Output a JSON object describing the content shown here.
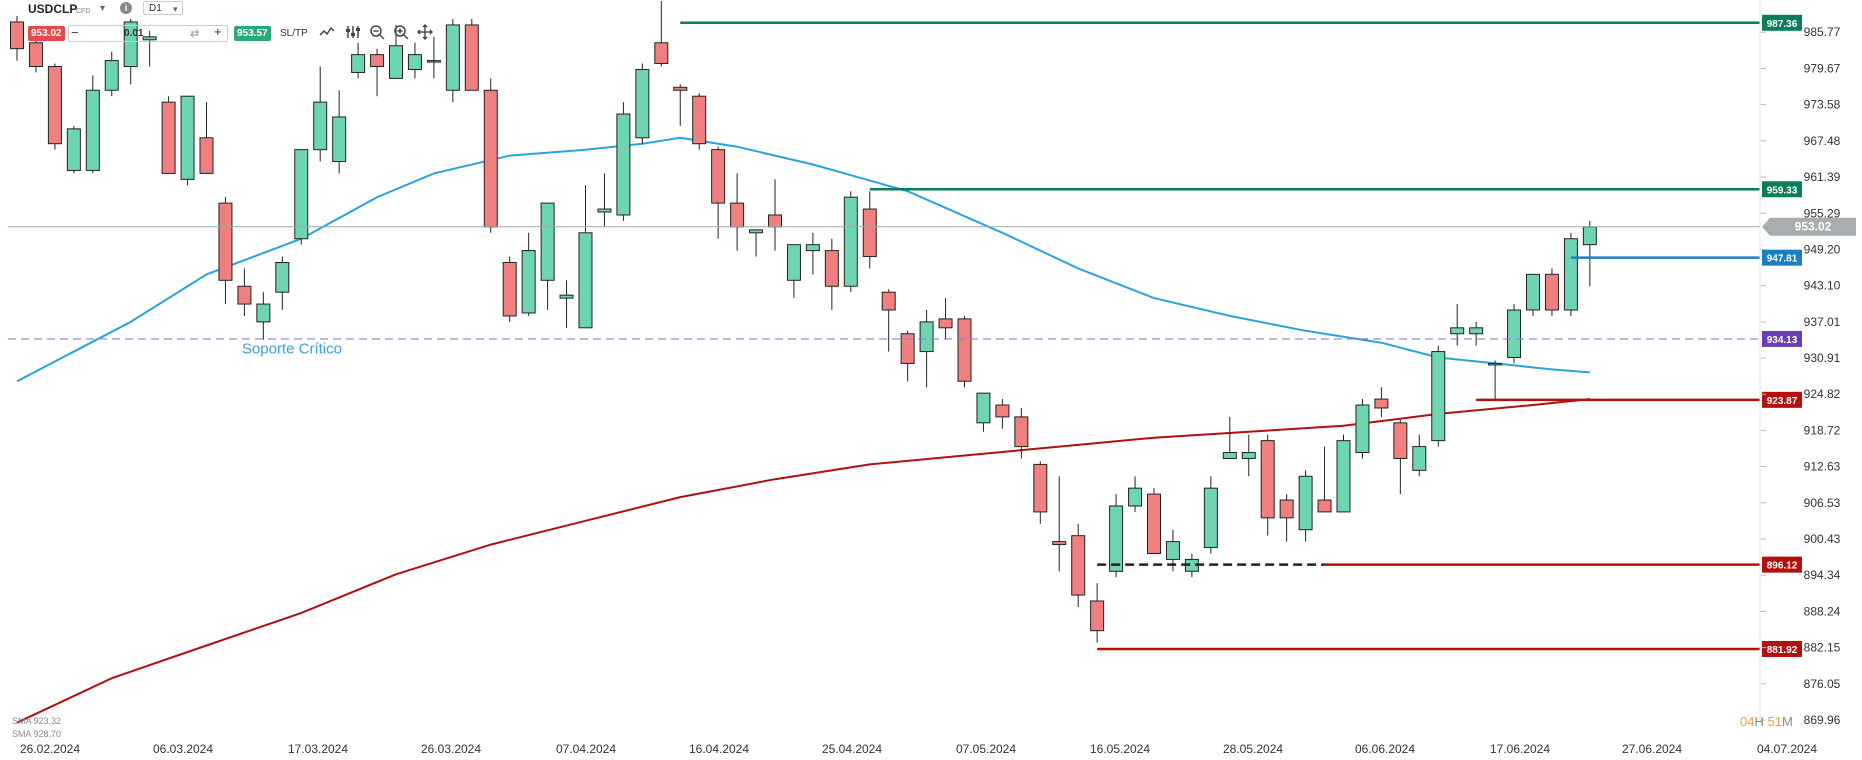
{
  "toolbar": {
    "symbol": "USDCLP",
    "instrument_type": "CFD",
    "timeframe": "D1",
    "bid": "953.02",
    "volume": "0.01",
    "ask": "953.57",
    "sltp_label": "SL/TP",
    "caret": "▾",
    "info": "i",
    "minus": "−",
    "plus": "+",
    "swap": "⇄"
  },
  "legend": {
    "sma1": "SMA 923.32",
    "sma2": "SMA 928.70"
  },
  "timer": {
    "hours": "04",
    "hours_unit": "H",
    "minutes": "51",
    "minutes_unit": "M"
  },
  "colors": {
    "bull": "#6fd4b0",
    "bear": "#f08080",
    "sma_fast": "#29a3e0",
    "sma_slow": "#b30f0f",
    "level_green": "#0a7d5a",
    "level_red": "#b30f0f",
    "level_blue": "#1a7fc4",
    "level_purple": "#6a3fb3"
  },
  "chart_data": {
    "type": "candlestick",
    "ylim": [
      869.96,
      991.2
    ],
    "y_ticks": [
      "985.77",
      "979.67",
      "973.58",
      "967.48",
      "961.39",
      "955.29",
      "949.20",
      "943.10",
      "937.01",
      "930.91",
      "924.82",
      "918.72",
      "912.63",
      "906.53",
      "900.43",
      "894.34",
      "888.24",
      "882.15",
      "876.05",
      "869.96"
    ],
    "x_ticks": [
      "26.02.2024",
      "06.03.2024",
      "17.03.2024",
      "26.03.2024",
      "07.04.2024",
      "16.04.2024",
      "25.04.2024",
      "07.05.2024",
      "16.05.2024",
      "28.05.2024",
      "06.06.2024",
      "17.06.2024",
      "27.06.2024",
      "04.07.2024"
    ],
    "candles": [
      {
        "o": 987.5,
        "h": 988.5,
        "l": 981.0,
        "c": 983.0
      },
      {
        "o": 984.0,
        "h": 984.5,
        "l": 979.0,
        "c": 980.0
      },
      {
        "o": 980.0,
        "h": 980.5,
        "l": 966.0,
        "c": 967.0
      },
      {
        "o": 962.5,
        "h": 970.0,
        "l": 962.0,
        "c": 969.5
      },
      {
        "o": 962.5,
        "h": 978.5,
        "l": 962.0,
        "c": 976.0
      },
      {
        "o": 976.0,
        "h": 982.5,
        "l": 975.0,
        "c": 981.0
      },
      {
        "o": 980.0,
        "h": 988.0,
        "l": 977.0,
        "c": 987.5
      },
      {
        "o": 984.5,
        "h": 986.0,
        "l": 980.0,
        "c": 985.0
      },
      {
        "o": 974.0,
        "h": 975.0,
        "l": 962.0,
        "c": 962.0
      },
      {
        "o": 961.0,
        "h": 975.0,
        "l": 960.0,
        "c": 975.0
      },
      {
        "o": 968.0,
        "h": 974.0,
        "l": 962.0,
        "c": 962.0
      },
      {
        "o": 957.0,
        "h": 958.0,
        "l": 940.0,
        "c": 944.0
      },
      {
        "o": 943.0,
        "h": 946.0,
        "l": 938.0,
        "c": 940.0
      },
      {
        "o": 937.0,
        "h": 942.0,
        "l": 934.0,
        "c": 940.0
      },
      {
        "o": 942.0,
        "h": 948.0,
        "l": 939.0,
        "c": 947.0
      },
      {
        "o": 951.0,
        "h": 966.0,
        "l": 950.0,
        "c": 966.0
      },
      {
        "o": 966.0,
        "h": 980.0,
        "l": 964.0,
        "c": 974.0
      },
      {
        "o": 964.0,
        "h": 976.0,
        "l": 962.0,
        "c": 971.5
      },
      {
        "o": 979.0,
        "h": 984.0,
        "l": 978.0,
        "c": 982.0
      },
      {
        "o": 982.0,
        "h": 983.0,
        "l": 975.0,
        "c": 980.0
      },
      {
        "o": 978.0,
        "h": 987.0,
        "l": 978.0,
        "c": 983.5
      },
      {
        "o": 979.5,
        "h": 984.0,
        "l": 978.0,
        "c": 982.0
      },
      {
        "o": 981.0,
        "h": 985.0,
        "l": 978.0,
        "c": 981.0
      },
      {
        "o": 976.0,
        "h": 988.0,
        "l": 974.0,
        "c": 987.0
      },
      {
        "o": 987.0,
        "h": 988.0,
        "l": 976.0,
        "c": 976.0
      },
      {
        "o": 976.0,
        "h": 978.0,
        "l": 952.0,
        "c": 953.0
      },
      {
        "o": 947.0,
        "h": 948.0,
        "l": 937.0,
        "c": 938.0
      },
      {
        "o": 938.5,
        "h": 952.0,
        "l": 938.0,
        "c": 949.0
      },
      {
        "o": 944.0,
        "h": 957.0,
        "l": 939.0,
        "c": 957.0
      },
      {
        "o": 941.0,
        "h": 944.0,
        "l": 936.0,
        "c": 941.5
      },
      {
        "o": 936.0,
        "h": 960.0,
        "l": 936.0,
        "c": 952.0
      },
      {
        "o": 955.5,
        "h": 962.0,
        "l": 953.0,
        "c": 956.0
      },
      {
        "o": 955.0,
        "h": 974.0,
        "l": 954.0,
        "c": 972.0
      },
      {
        "o": 968.0,
        "h": 980.5,
        "l": 967.0,
        "c": 979.5
      },
      {
        "o": 984.0,
        "h": 991.0,
        "l": 980.0,
        "c": 980.5
      },
      {
        "o": 976.5,
        "h": 977.0,
        "l": 970.0,
        "c": 976.0
      },
      {
        "o": 975.0,
        "h": 975.5,
        "l": 966.0,
        "c": 967.0
      },
      {
        "o": 966.0,
        "h": 966.5,
        "l": 951.0,
        "c": 957.0
      },
      {
        "o": 957.0,
        "h": 962.0,
        "l": 949.0,
        "c": 953.0
      },
      {
        "o": 952.0,
        "h": 952.5,
        "l": 948.0,
        "c": 952.5
      },
      {
        "o": 955.0,
        "h": 961.0,
        "l": 949.0,
        "c": 953.0
      },
      {
        "o": 944.0,
        "h": 950.0,
        "l": 941.0,
        "c": 950.0
      },
      {
        "o": 949.0,
        "h": 952.0,
        "l": 945.0,
        "c": 950.0
      },
      {
        "o": 949.0,
        "h": 951.0,
        "l": 939.0,
        "c": 943.0
      },
      {
        "o": 943.0,
        "h": 959.0,
        "l": 942.0,
        "c": 958.0
      },
      {
        "o": 956.0,
        "h": 959.0,
        "l": 946.0,
        "c": 948.0
      },
      {
        "o": 942.0,
        "h": 942.5,
        "l": 932.0,
        "c": 939.0
      },
      {
        "o": 935.0,
        "h": 935.5,
        "l": 927.0,
        "c": 930.0
      },
      {
        "o": 932.0,
        "h": 939.0,
        "l": 926.0,
        "c": 937.0
      },
      {
        "o": 937.5,
        "h": 941.0,
        "l": 934.0,
        "c": 936.0
      },
      {
        "o": 937.5,
        "h": 938.0,
        "l": 926.0,
        "c": 927.0
      },
      {
        "o": 920.0,
        "h": 925.0,
        "l": 918.5,
        "c": 925.0
      },
      {
        "o": 923.0,
        "h": 924.0,
        "l": 919.0,
        "c": 921.0
      },
      {
        "o": 921.0,
        "h": 922.5,
        "l": 914.0,
        "c": 916.0
      },
      {
        "o": 913.0,
        "h": 913.5,
        "l": 903.0,
        "c": 905.0
      },
      {
        "o": 900.0,
        "h": 911.0,
        "l": 895.0,
        "c": 899.5
      },
      {
        "o": 901.0,
        "h": 903.0,
        "l": 889.0,
        "c": 891.0
      },
      {
        "o": 890.0,
        "h": 893.0,
        "l": 883.0,
        "c": 885.0
      },
      {
        "o": 895.0,
        "h": 908.0,
        "l": 894.0,
        "c": 906.0
      },
      {
        "o": 906.0,
        "h": 911.0,
        "l": 905.0,
        "c": 909.0
      },
      {
        "o": 908.0,
        "h": 909.0,
        "l": 898.0,
        "c": 898.0
      },
      {
        "o": 897.0,
        "h": 902.0,
        "l": 895.0,
        "c": 900.0
      },
      {
        "o": 895.0,
        "h": 898.0,
        "l": 894.0,
        "c": 897.0
      },
      {
        "o": 899.0,
        "h": 911.0,
        "l": 898.0,
        "c": 909.0
      },
      {
        "o": 914.0,
        "h": 921.0,
        "l": 914.0,
        "c": 915.0
      },
      {
        "o": 914.0,
        "h": 918.0,
        "l": 911.0,
        "c": 915.0
      },
      {
        "o": 917.0,
        "h": 918.0,
        "l": 901.0,
        "c": 904.0
      },
      {
        "o": 907.0,
        "h": 908.0,
        "l": 900.0,
        "c": 904.0
      },
      {
        "o": 902.0,
        "h": 912.0,
        "l": 900.0,
        "c": 911.0
      },
      {
        "o": 907.0,
        "h": 916.0,
        "l": 906.0,
        "c": 905.0
      },
      {
        "o": 905.0,
        "h": 918.0,
        "l": 905.0,
        "c": 917.0
      },
      {
        "o": 915.0,
        "h": 924.0,
        "l": 914.0,
        "c": 923.0
      },
      {
        "o": 924.0,
        "h": 926.0,
        "l": 921.0,
        "c": 922.5
      },
      {
        "o": 920.0,
        "h": 920.5,
        "l": 908.0,
        "c": 914.0
      },
      {
        "o": 912.0,
        "h": 918.0,
        "l": 911.0,
        "c": 916.0
      },
      {
        "o": 917.0,
        "h": 933.0,
        "l": 916.0,
        "c": 932.0
      },
      {
        "o": 935.0,
        "h": 940.0,
        "l": 933.0,
        "c": 936.0
      },
      {
        "o": 935.0,
        "h": 937.0,
        "l": 933.0,
        "c": 936.0
      },
      {
        "o": 930.0,
        "h": 930.5,
        "l": 924.0,
        "c": 930.0
      },
      {
        "o": 931.0,
        "h": 940.0,
        "l": 930.0,
        "c": 939.0
      },
      {
        "o": 939.0,
        "h": 945.0,
        "l": 938.0,
        "c": 945.0
      },
      {
        "o": 945.0,
        "h": 946.0,
        "l": 938.0,
        "c": 939.0
      },
      {
        "o": 939.0,
        "h": 952.0,
        "l": 938.0,
        "c": 951.0
      },
      {
        "o": 950.0,
        "h": 954.0,
        "l": 943.0,
        "c": 953.0
      }
    ],
    "sma_fast": [
      [
        0,
        927.0
      ],
      [
        6,
        937.0
      ],
      [
        10,
        945.0
      ],
      [
        15,
        951.0
      ],
      [
        19,
        958.0
      ],
      [
        22,
        962.0
      ],
      [
        26,
        965.0
      ],
      [
        30,
        966.0
      ],
      [
        33,
        967.0
      ],
      [
        35,
        968.0
      ],
      [
        38,
        966.5
      ],
      [
        42,
        963.5
      ],
      [
        47,
        959.0
      ],
      [
        52,
        952.0
      ],
      [
        56,
        946.0
      ],
      [
        60,
        941.0
      ],
      [
        64,
        938.0
      ],
      [
        68,
        935.5
      ],
      [
        72,
        933.5
      ],
      [
        75,
        931.0
      ],
      [
        78,
        930.0
      ],
      [
        81,
        929.0
      ],
      [
        83,
        928.5
      ]
    ],
    "sma_slow": [
      [
        0,
        869.5
      ],
      [
        5,
        877.0
      ],
      [
        10,
        882.5
      ],
      [
        15,
        888.0
      ],
      [
        20,
        894.5
      ],
      [
        25,
        899.5
      ],
      [
        30,
        903.5
      ],
      [
        35,
        907.5
      ],
      [
        40,
        910.5
      ],
      [
        45,
        913.0
      ],
      [
        50,
        914.5
      ],
      [
        55,
        916.0
      ],
      [
        60,
        917.5
      ],
      [
        65,
        918.5
      ],
      [
        70,
        919.5
      ],
      [
        75,
        921.5
      ],
      [
        80,
        923.0
      ],
      [
        83,
        924.0
      ]
    ],
    "levels": [
      {
        "value": 987.36,
        "label": "987.36",
        "color": "green",
        "x_start_candle": 35
      },
      {
        "value": 959.33,
        "label": "959.33",
        "color": "green",
        "x_start_candle": 45
      },
      {
        "value": 947.81,
        "label": "947.81",
        "color": "blue",
        "x_start_candle": 82
      },
      {
        "value": 934.13,
        "label": "934.13",
        "color": "purple",
        "dashed": true
      },
      {
        "value": 923.87,
        "label": "923.87",
        "color": "red",
        "x_start_candle": 77
      },
      {
        "value": 896.12,
        "label": "896.12",
        "color": "red",
        "x_start_candle": 69
      },
      {
        "value": 881.92,
        "label": "881.92",
        "color": "red",
        "x_start_candle": 57
      }
    ],
    "dashed_support": {
      "value": 896.12,
      "from_candle": 57,
      "to_candle": 69
    },
    "current_price": {
      "value": 953.02,
      "label": "953.02"
    },
    "annotation": {
      "text": "Soporte Crítico",
      "value": 932.5,
      "candle": 11.5
    }
  }
}
